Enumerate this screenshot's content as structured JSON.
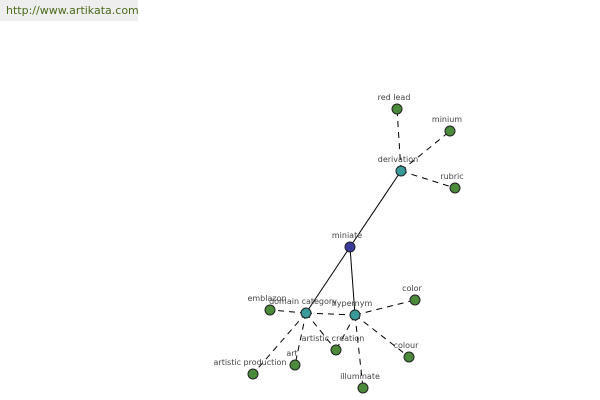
{
  "header": {
    "url": "http://www.artikata.com"
  },
  "nodes": [
    {
      "label": "miniate"
    },
    {
      "label": "derivation"
    },
    {
      "label": "red lead"
    },
    {
      "label": "minium"
    },
    {
      "label": "rubric"
    },
    {
      "label": "domain category"
    },
    {
      "label": "hypernym"
    },
    {
      "label": "emblazon"
    },
    {
      "label": "color"
    },
    {
      "label": "artistic creation"
    },
    {
      "label": "art"
    },
    {
      "label": "artistic production"
    },
    {
      "label": "illuminate"
    },
    {
      "label": "colour"
    }
  ]
}
